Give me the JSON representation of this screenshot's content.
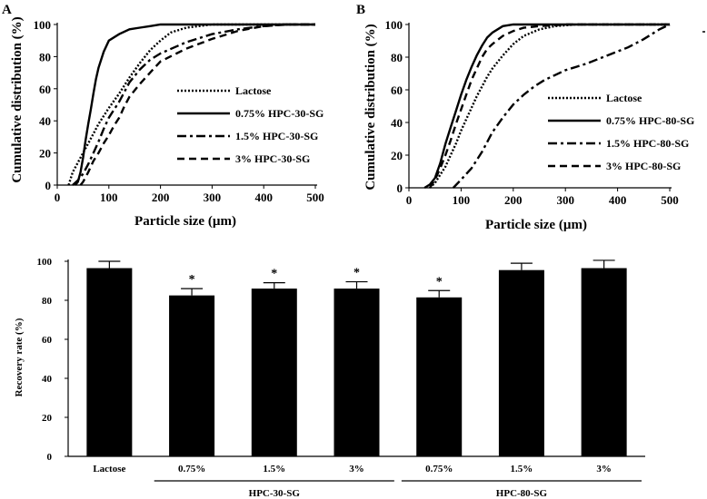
{
  "chart_data": [
    {
      "type": "line",
      "panel_label": "A",
      "xlabel": "Particle size (µm)",
      "ylabel": "Cumulative distribution (%)",
      "xlim": [
        0,
        500
      ],
      "ylim": [
        0,
        100
      ],
      "xticks": [
        0,
        100,
        200,
        300,
        400,
        500
      ],
      "yticks": [
        0,
        20,
        40,
        60,
        80,
        100
      ],
      "series": [
        {
          "name": "Lactose",
          "style": "dotted",
          "x": [
            22,
            30,
            40,
            50,
            60,
            70,
            80,
            100,
            120,
            140,
            160,
            180,
            200,
            220,
            250,
            300,
            350,
            400,
            470,
            500
          ],
          "y": [
            0,
            8,
            14,
            20,
            26,
            32,
            38,
            48,
            57,
            67,
            76,
            84,
            90,
            95,
            98,
            100,
            100,
            100,
            100,
            100
          ]
        },
        {
          "name": "0.75% HPC-30-SG",
          "style": "solid",
          "x": [
            35,
            40,
            45,
            50,
            55,
            60,
            65,
            70,
            75,
            80,
            90,
            100,
            120,
            140,
            160,
            180,
            200,
            210,
            250,
            300,
            400,
            500
          ],
          "y": [
            0,
            2,
            8,
            17,
            28,
            38,
            47,
            57,
            66,
            73,
            83,
            90,
            94,
            97,
            98,
            99,
            100,
            100,
            100,
            100,
            100,
            100
          ]
        },
        {
          "name": "1.5% HPC-30-SG",
          "style": "dashdot",
          "x": [
            30,
            40,
            50,
            60,
            70,
            80,
            90,
            100,
            120,
            140,
            160,
            180,
            200,
            250,
            300,
            350,
            400,
            440,
            470,
            500
          ],
          "y": [
            0,
            3,
            7,
            13,
            20,
            27,
            35,
            42,
            52,
            64,
            72,
            78,
            82,
            89,
            94,
            97,
            99,
            100,
            100,
            100
          ]
        },
        {
          "name": "3% HPC-30-SG",
          "style": "dashed",
          "x": [
            45,
            50,
            60,
            70,
            80,
            90,
            100,
            110,
            120,
            130,
            140,
            160,
            180,
            200,
            250,
            300,
            350,
            400,
            450,
            500
          ],
          "y": [
            0,
            2,
            8,
            15,
            20,
            26,
            31,
            37,
            42,
            49,
            55,
            63,
            70,
            77,
            85,
            91,
            96,
            99,
            100,
            100
          ]
        }
      ],
      "legend": [
        "Lactose",
        "0.75% HPC-30-SG",
        "1.5% HPC-30-SG",
        "3% HPC-30-SG"
      ]
    },
    {
      "type": "line",
      "panel_label": "B",
      "xlabel": "Particle size (µm)",
      "ylabel": "Cumulative distribution (%)",
      "xlim": [
        0,
        500
      ],
      "ylim": [
        0,
        100
      ],
      "xticks": [
        0,
        100,
        200,
        300,
        400,
        500
      ],
      "yticks": [
        0,
        20,
        40,
        60,
        80,
        100
      ],
      "series": [
        {
          "name": "Lactose",
          "style": "dotted",
          "x": [
            40,
            50,
            60,
            70,
            80,
            90,
            100,
            110,
            120,
            130,
            140,
            150,
            160,
            180,
            200,
            220,
            250,
            280,
            320,
            400,
            500
          ],
          "y": [
            0,
            3,
            8,
            13,
            20,
            27,
            35,
            42,
            49,
            56,
            62,
            68,
            73,
            81,
            88,
            93,
            97,
            99,
            100,
            100,
            100
          ]
        },
        {
          "name": "0.75% HPC-80-SG",
          "style": "solid",
          "x": [
            30,
            40,
            50,
            60,
            70,
            80,
            90,
            100,
            110,
            120,
            130,
            140,
            150,
            160,
            180,
            200,
            210,
            250,
            300,
            400,
            500
          ],
          "y": [
            0,
            2,
            6,
            15,
            27,
            37,
            47,
            57,
            66,
            74,
            81,
            87,
            92,
            95,
            99,
            100,
            100,
            100,
            100,
            100,
            100
          ]
        },
        {
          "name": "1.5% HPC-80-SG",
          "style": "dashdot",
          "x": [
            85,
            100,
            120,
            140,
            160,
            180,
            200,
            220,
            240,
            260,
            280,
            300,
            340,
            380,
            420,
            450,
            480,
            500
          ],
          "y": [
            0,
            5,
            12,
            22,
            34,
            43,
            51,
            57,
            62,
            66,
            69,
            72,
            76,
            81,
            86,
            91,
            97,
            100
          ]
        },
        {
          "name": "3% HPC-80-SG",
          "style": "dashed",
          "x": [
            40,
            50,
            60,
            70,
            80,
            90,
            100,
            110,
            120,
            130,
            140,
            150,
            160,
            180,
            200,
            220,
            250,
            300,
            400,
            500
          ],
          "y": [
            0,
            5,
            12,
            20,
            29,
            39,
            48,
            57,
            66,
            73,
            80,
            85,
            88,
            93,
            96,
            98,
            99,
            100,
            100,
            100
          ]
        }
      ],
      "legend": [
        "Lactose",
        "0.75% HPC-80-SG",
        "1.5% HPC-80-SG",
        "3% HPC-80-SG"
      ]
    },
    {
      "type": "bar",
      "ylabel": "Recovery rate (%)",
      "ylim": [
        0,
        100
      ],
      "yticks": [
        0,
        20,
        40,
        60,
        80,
        100
      ],
      "categories": [
        "Lactose",
        "0.75%",
        "1.5%",
        "3%",
        "0.75%",
        "1.5%",
        "3%"
      ],
      "values": [
        96.5,
        82.5,
        86,
        86,
        81.5,
        95.5,
        96.5
      ],
      "errors": [
        3.5,
        3.5,
        3,
        3.5,
        3.5,
        3.5,
        4
      ],
      "significant": [
        false,
        true,
        true,
        true,
        true,
        false,
        false
      ],
      "significance_marker": "*",
      "groups": [
        {
          "label": "HPC-30-SG",
          "indices": [
            1,
            2,
            3
          ]
        },
        {
          "label": "HPC-80-SG",
          "indices": [
            4,
            5,
            6
          ]
        }
      ]
    }
  ]
}
